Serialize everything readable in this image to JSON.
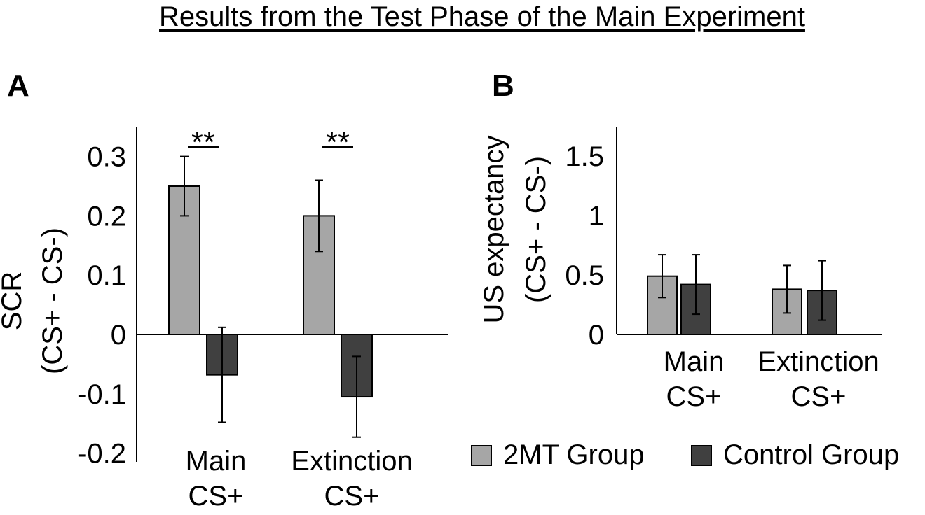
{
  "title": "Results from the Test Phase of the Main Experiment",
  "legend": {
    "items": [
      {
        "label": "2MT Group",
        "color": "#a6a6a6"
      },
      {
        "label": "Control Group",
        "color": "#404040"
      }
    ]
  },
  "chart_data": [
    {
      "panel_label": "A",
      "type": "bar",
      "ylabel_line1": "SCR",
      "ylabel_line2": "(CS+ - CS-)",
      "ylim": [
        -0.2,
        0.35
      ],
      "yticks": [
        0.3,
        0.2,
        0.1,
        0,
        -0.1,
        -0.2
      ],
      "ytick_labels": [
        "0.3",
        "0.2",
        "0.1",
        "0",
        "-0.1",
        "-0.2"
      ],
      "categories": [
        [
          "Main",
          "CS+"
        ],
        [
          "Extinction",
          "CS+"
        ]
      ],
      "series": [
        {
          "name": "2MT Group",
          "values": [
            0.25,
            0.2
          ],
          "errors": [
            0.05,
            0.06
          ]
        },
        {
          "name": "Control Group",
          "values": [
            -0.068,
            -0.105
          ],
          "errors": [
            0.08,
            0.068
          ]
        }
      ],
      "significance": [
        "**",
        "**"
      ]
    },
    {
      "panel_label": "B",
      "type": "bar",
      "ylabel_line1": "US expectancy",
      "ylabel_line2": "(CS+ - CS-)",
      "ylim": [
        0,
        1.75
      ],
      "yticks": [
        1.5,
        1,
        0.5,
        0
      ],
      "ytick_labels": [
        "1.5",
        "1",
        "0.5",
        "0"
      ],
      "categories": [
        [
          "Main",
          "CS+"
        ],
        [
          "Extinction",
          "CS+"
        ]
      ],
      "series": [
        {
          "name": "2MT Group",
          "values": [
            0.49,
            0.38
          ],
          "errors": [
            0.18,
            0.2
          ]
        },
        {
          "name": "Control Group",
          "values": [
            0.42,
            0.37
          ],
          "errors": [
            0.25,
            0.25
          ]
        }
      ],
      "significance": []
    }
  ]
}
